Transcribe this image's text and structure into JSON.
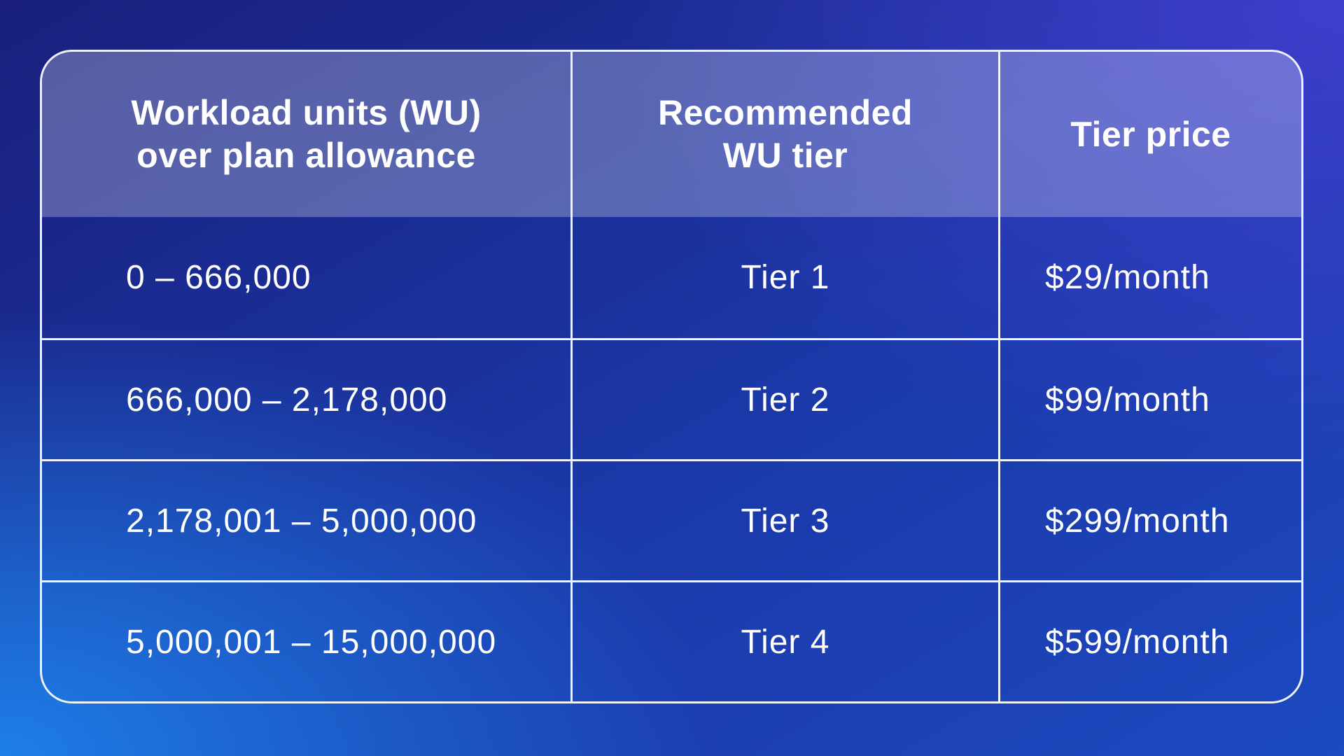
{
  "page": {
    "text_color": "#ffffff",
    "border_color": "#eef2fa",
    "header_overlay": "rgba(255,255,255,0.27)",
    "background_gradient": {
      "corner_top_left": "#1a2178",
      "corner_top_right": "#3138b8",
      "corner_bottom_left": "#1e72d8",
      "corner_bottom_right": "#1846c0"
    }
  },
  "display": {
    "headers": [
      {
        "line1": "Workload units (WU)",
        "line2": "over plan allowance"
      },
      {
        "line1": "Recommended",
        "line2": "WU tier"
      },
      {
        "line1": "Tier price",
        "line2": ""
      }
    ]
  },
  "chart_data": {
    "type": "table",
    "title": "",
    "columns": [
      "Workload units (WU) over plan allowance",
      "Recommended WU tier",
      "Tier price"
    ],
    "rows": [
      [
        "0 – 666,000",
        "Tier 1",
        "$29/month"
      ],
      [
        "666,000 – 2,178,000",
        "Tier 2",
        "$99/month"
      ],
      [
        "2,178,001 – 5,000,000",
        "Tier 3",
        "$299/month"
      ],
      [
        "5,000,001 – 15,000,000",
        "Tier 4",
        "$599/month"
      ]
    ],
    "layout_hints": {
      "header_background": "semi-transparent white over blue gradient",
      "grid": "white 3px separators, no line under header row",
      "corner_radius_px": 46,
      "column_alignment": [
        "left",
        "center",
        "left"
      ],
      "header_alignment": "center"
    }
  }
}
